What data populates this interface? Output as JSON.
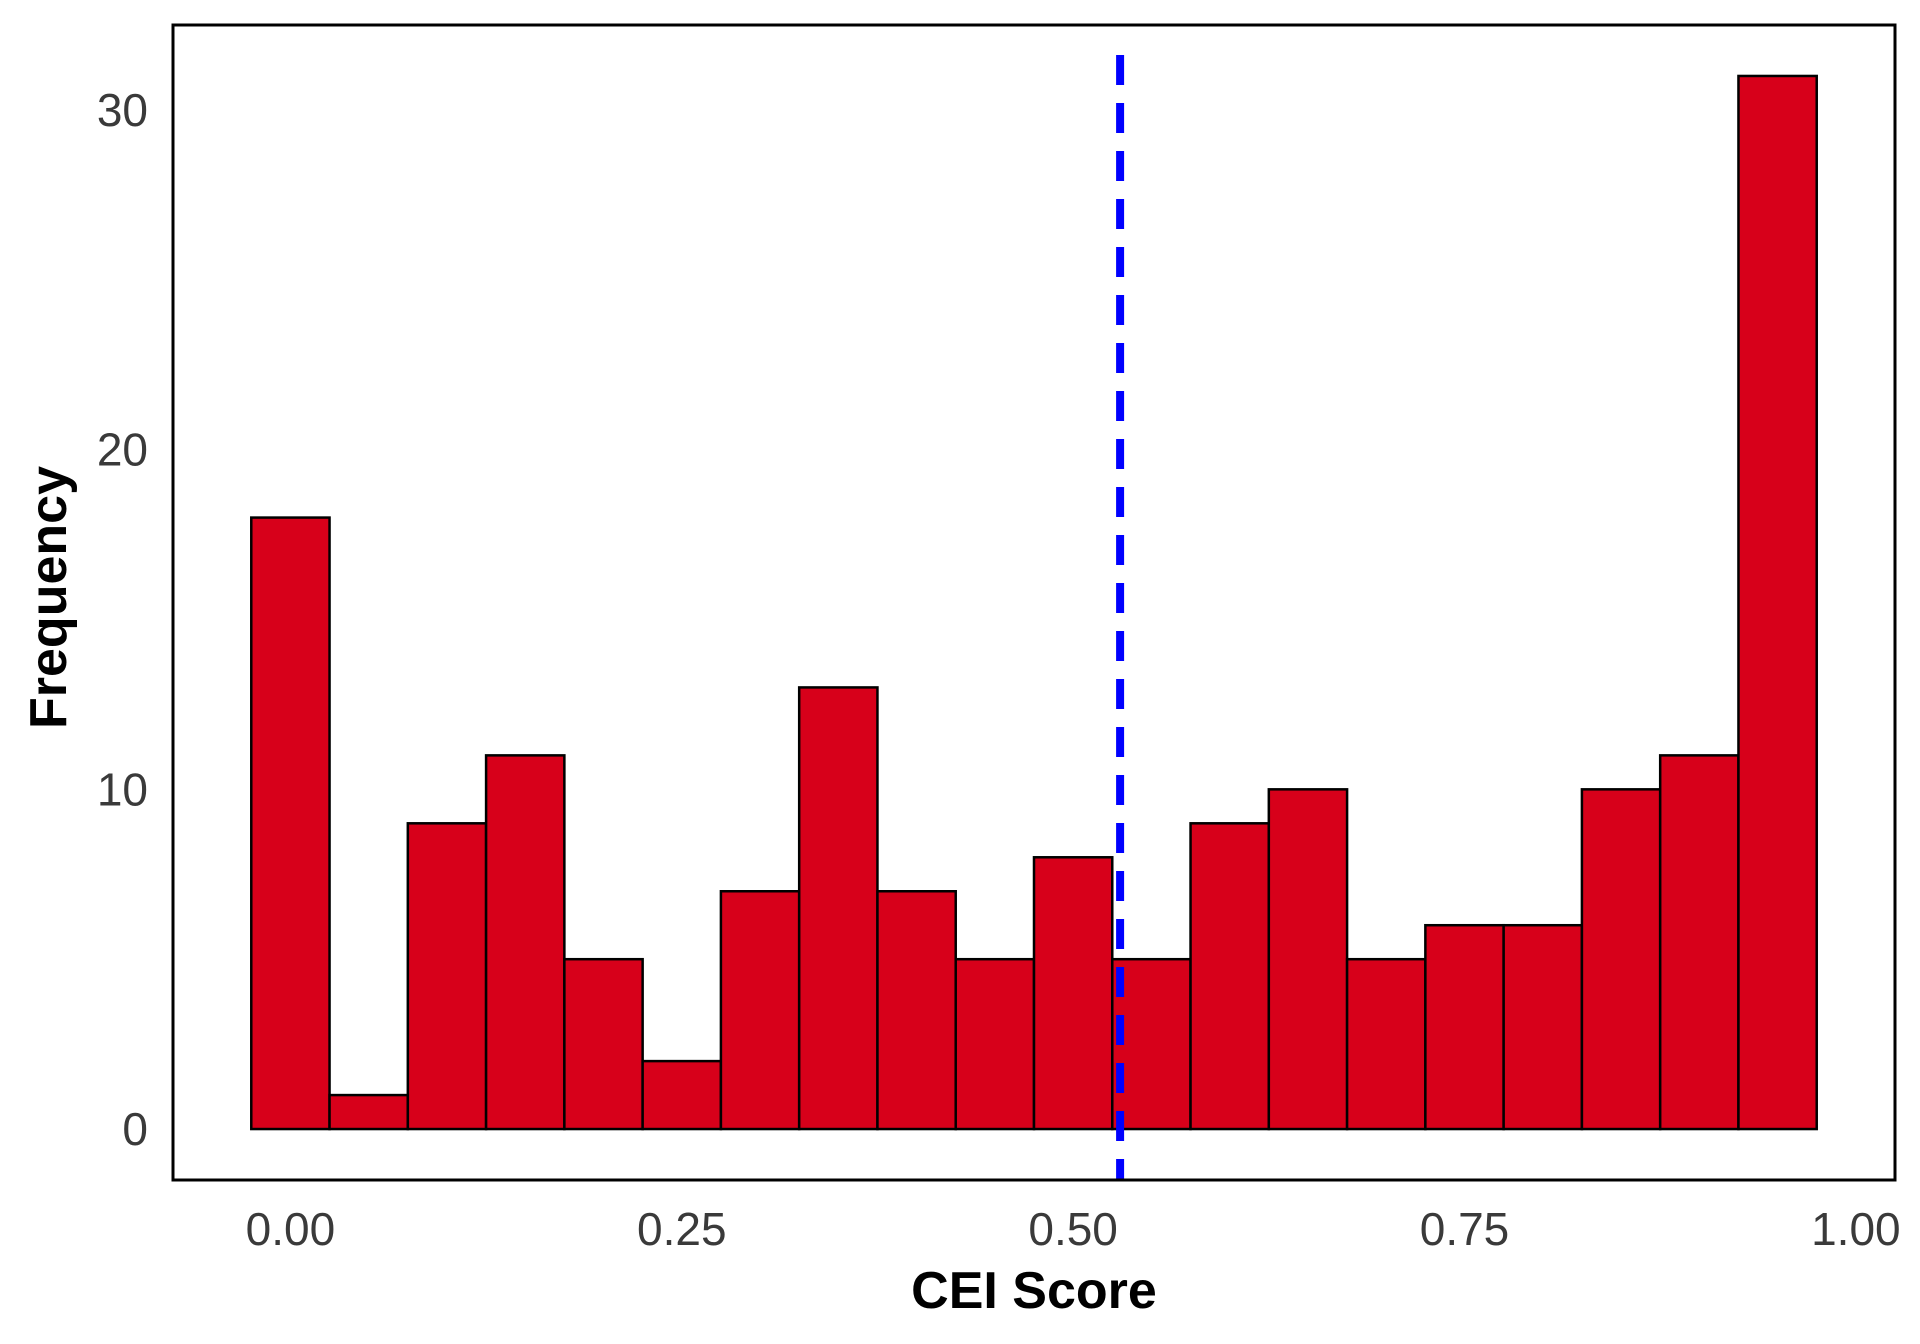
{
  "chart_data": {
    "type": "histogram",
    "title": "",
    "xlabel": "CEI Score",
    "ylabel": "Frequency",
    "bin_width": 0.05,
    "bins": [
      {
        "start": -0.025,
        "end": 0.025,
        "count": 18
      },
      {
        "start": 0.025,
        "end": 0.075,
        "count": 1
      },
      {
        "start": 0.075,
        "end": 0.125,
        "count": 9
      },
      {
        "start": 0.125,
        "end": 0.175,
        "count": 11
      },
      {
        "start": 0.175,
        "end": 0.225,
        "count": 5
      },
      {
        "start": 0.225,
        "end": 0.275,
        "count": 2
      },
      {
        "start": 0.275,
        "end": 0.325,
        "count": 7
      },
      {
        "start": 0.325,
        "end": 0.375,
        "count": 13
      },
      {
        "start": 0.375,
        "end": 0.425,
        "count": 7
      },
      {
        "start": 0.425,
        "end": 0.475,
        "count": 5
      },
      {
        "start": 0.475,
        "end": 0.525,
        "count": 8
      },
      {
        "start": 0.525,
        "end": 0.575,
        "count": 5
      },
      {
        "start": 0.575,
        "end": 0.625,
        "count": 9
      },
      {
        "start": 0.625,
        "end": 0.675,
        "count": 10
      },
      {
        "start": 0.675,
        "end": 0.725,
        "count": 5
      },
      {
        "start": 0.725,
        "end": 0.775,
        "count": 6
      },
      {
        "start": 0.775,
        "end": 0.825,
        "count": 6
      },
      {
        "start": 0.825,
        "end": 0.875,
        "count": 10
      },
      {
        "start": 0.875,
        "end": 0.925,
        "count": 11
      },
      {
        "start": 0.925,
        "end": 0.975,
        "count": 31
      }
    ],
    "reference_line": {
      "x": 0.53,
      "style": "dashed",
      "color": "#0000ff"
    },
    "bar_color": "#d7001a",
    "edge_color": "#000000",
    "xlim": [
      -0.075,
      1.025
    ],
    "ylim": [
      -1.5,
      32.5
    ],
    "xticks": [
      {
        "value": 0.0,
        "label": "0.00"
      },
      {
        "value": 0.25,
        "label": "0.25"
      },
      {
        "value": 0.5,
        "label": "0.50"
      },
      {
        "value": 0.75,
        "label": "0.75"
      },
      {
        "value": 1.0,
        "label": "1.00"
      }
    ],
    "yticks": [
      {
        "value": 0,
        "label": "0"
      },
      {
        "value": 10,
        "label": "10"
      },
      {
        "value": 20,
        "label": "20"
      },
      {
        "value": 30,
        "label": "30"
      }
    ],
    "grid": false,
    "legend": "none"
  }
}
